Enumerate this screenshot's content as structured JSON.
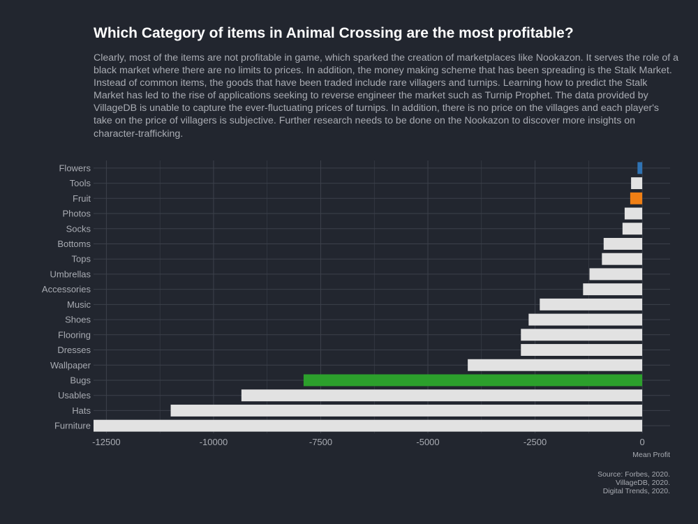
{
  "title": "Which Category of items in Animal Crossing are the most profitable?",
  "subtitle": "Clearly, most of the items are not profitable in game, which sparked the creation of marketplaces like Nookazon. It serves the role of a black market where there are no limits to prices. In addition, the money making scheme that has been spreading is the Stalk Market. Instead of common items, the goods that have been traded include rare villagers and turnips. Learning how to predict the Stalk Market has led to the rise of applications seeking to reverse engineer the market such as Turnip Prophet. The data provided by VillageDB is unable to capture the ever-fluctuating prices of turnips. In addition, there is no price on the villages and each player's take on the price of villagers is subjective. Further research needs to be done on the Nookazon to discover more insights on character-trafficking.",
  "caption": [
    "Source: Forbes, 2020.",
    "VillageDB, 2020.",
    "Digital Trends, 2020."
  ],
  "colors": {
    "background": "#22262f",
    "default_bar": "#e2e2e2",
    "Flowers": "#2f73b4",
    "Fruit": "#f07f14",
    "Bugs": "#2ca02c",
    "grid": "#3c414b"
  },
  "chart_data": {
    "type": "bar",
    "orientation": "horizontal",
    "title": "Which Category of items in Animal Crossing are the most profitable?",
    "xlabel": "Mean Profit",
    "ylabel": "",
    "xlim": [
      -12800,
      650
    ],
    "xticks": [
      -12500,
      -10000,
      -7500,
      -5000,
      -2500,
      0
    ],
    "xtick_labels": [
      "-12500",
      "-10000",
      "-7500",
      "-5000",
      "-2500",
      "0"
    ],
    "grid": true,
    "legend": "none",
    "categories": [
      "Flowers",
      "Tools",
      "Fruit",
      "Photos",
      "Socks",
      "Bottoms",
      "Tops",
      "Umbrellas",
      "Accessories",
      "Music",
      "Shoes",
      "Flooring",
      "Dresses",
      "Wallpaper",
      "Bugs",
      "Usables",
      "Hats",
      "Furniture"
    ],
    "values": [
      -110,
      -260,
      -280,
      -410,
      -460,
      -900,
      -940,
      -1230,
      -1380,
      -2390,
      -2650,
      -2830,
      -2830,
      -4070,
      -7900,
      -9350,
      -11000,
      -12800
    ]
  }
}
